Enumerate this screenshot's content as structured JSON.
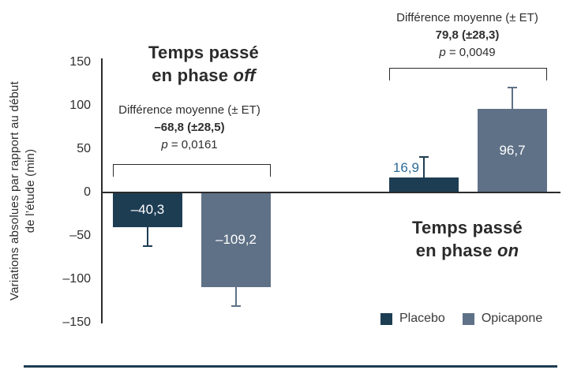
{
  "figure": {
    "y_axis": {
      "label_line1": "Variations absolues par rapport au début",
      "label_line2": "de l’étude (min)"
    },
    "titles": [
      {
        "line1": "Temps passé",
        "line2_prefix": "en phase ",
        "line2_italic": "off"
      },
      {
        "line1": "Temps passé",
        "line2_prefix": "en phase ",
        "line2_italic": "on"
      }
    ],
    "annotations": [
      {
        "line1": "Différence moyenne (± ET)",
        "line2": "–68,8 (±28,5)",
        "p_italic": "p",
        "p_rest": " = 0,0161"
      },
      {
        "line1": "Différence moyenne (± ET)",
        "line2": "79,8 (±28,3)",
        "p_italic": "p",
        "p_rest": " = 0,0049"
      }
    ],
    "legend": [
      {
        "label": "Placebo",
        "color": "#1d3d53"
      },
      {
        "label": "Opicapone",
        "color": "#5f7187"
      }
    ],
    "value_label_outside_color": "#2d6b97"
  },
  "chart_data": {
    "type": "bar",
    "categories": [
      "Temps passé en phase off",
      "Temps passé en phase on"
    ],
    "series": [
      {
        "name": "Placebo",
        "color": "#1d3d53",
        "values": [
          -40.3,
          16.9
        ],
        "value_labels": [
          "–40,3",
          "16,9"
        ],
        "error_extent": [
          22,
          25
        ],
        "label_inside": [
          true,
          false
        ]
      },
      {
        "name": "Opicapone",
        "color": "#5f7187",
        "values": [
          -109.2,
          96.7
        ],
        "value_labels": [
          "–109,2",
          "96,7"
        ],
        "error_extent": [
          23,
          25
        ],
        "label_inside": [
          true,
          true
        ]
      }
    ],
    "ylabel": "Variations absolues par rapport au début de l’étude (min)",
    "ylim": [
      -150,
      150
    ],
    "yticks": [
      150,
      100,
      50,
      0,
      -50,
      -100,
      -150
    ],
    "ytick_labels": [
      "150",
      "100",
      "50",
      "0",
      "–50",
      "–100",
      "–150"
    ],
    "grid": false,
    "legend_position": "bottom-right",
    "group_comparisons": [
      {
        "category": "Temps passé en phase off",
        "mean_difference": -68.8,
        "sd": 28.5,
        "p_value": 0.0161
      },
      {
        "category": "Temps passé en phase on",
        "mean_difference": 79.8,
        "sd": 28.3,
        "p_value": 0.0049
      }
    ]
  }
}
